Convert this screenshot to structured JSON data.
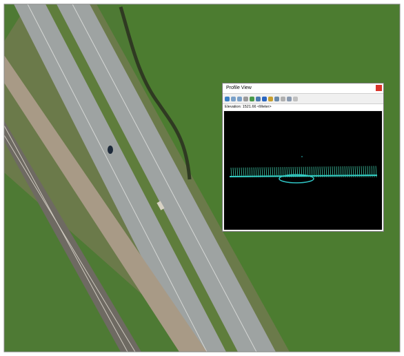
{
  "window": {
    "title": "Profile View",
    "status": "Elevation: 1521.66 <Meter>"
  }
}
